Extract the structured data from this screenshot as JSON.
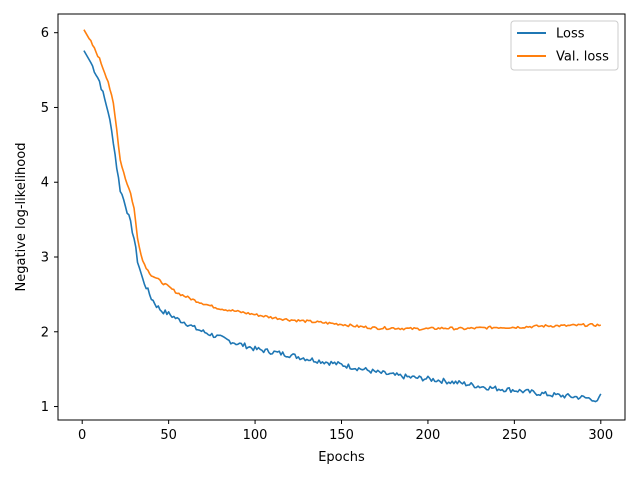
{
  "chart_data": {
    "type": "line",
    "title": "",
    "xlabel": "Epochs",
    "ylabel": "Negative log-likelihood",
    "xlim": [
      -14,
      314
    ],
    "ylim": [
      0.82,
      6.25
    ],
    "x_ticks": [
      0,
      50,
      100,
      150,
      200,
      250,
      300
    ],
    "y_ticks": [
      1,
      2,
      3,
      4,
      5,
      6
    ],
    "x_tick_labels": [
      "0",
      "50",
      "100",
      "150",
      "200",
      "250",
      "300"
    ],
    "y_tick_labels": [
      "1",
      "2",
      "3",
      "4",
      "5",
      "6"
    ],
    "grid": false,
    "legend_position": "top-right",
    "series": [
      {
        "name": "Loss",
        "color": "#1f77b4",
        "points": [
          [
            1,
            5.76
          ],
          [
            5,
            5.6
          ],
          [
            10,
            5.35
          ],
          [
            15,
            4.95
          ],
          [
            18,
            4.55
          ],
          [
            20,
            4.2
          ],
          [
            22,
            3.9
          ],
          [
            25,
            3.7
          ],
          [
            28,
            3.45
          ],
          [
            30,
            3.25
          ],
          [
            32,
            2.95
          ],
          [
            35,
            2.7
          ],
          [
            38,
            2.55
          ],
          [
            40,
            2.45
          ],
          [
            43,
            2.35
          ],
          [
            46,
            2.28
          ],
          [
            50,
            2.24
          ],
          [
            55,
            2.17
          ],
          [
            60,
            2.12
          ],
          [
            65,
            2.05
          ],
          [
            70,
            2.0
          ],
          [
            75,
            1.96
          ],
          [
            80,
            1.92
          ],
          [
            85,
            1.88
          ],
          [
            90,
            1.84
          ],
          [
            95,
            1.81
          ],
          [
            100,
            1.77
          ],
          [
            110,
            1.73
          ],
          [
            120,
            1.69
          ],
          [
            130,
            1.64
          ],
          [
            140,
            1.6
          ],
          [
            150,
            1.56
          ],
          [
            160,
            1.51
          ],
          [
            170,
            1.46
          ],
          [
            180,
            1.42
          ],
          [
            190,
            1.39
          ],
          [
            200,
            1.37
          ],
          [
            210,
            1.34
          ],
          [
            220,
            1.31
          ],
          [
            230,
            1.27
          ],
          [
            240,
            1.24
          ],
          [
            250,
            1.22
          ],
          [
            260,
            1.19
          ],
          [
            270,
            1.16
          ],
          [
            280,
            1.14
          ],
          [
            290,
            1.12
          ],
          [
            296,
            1.1
          ],
          [
            298,
            1.05
          ],
          [
            300,
            1.17
          ]
        ]
      },
      {
        "name": "Val. loss",
        "color": "#ff7f0e",
        "points": [
          [
            1,
            6.04
          ],
          [
            5,
            5.88
          ],
          [
            10,
            5.65
          ],
          [
            15,
            5.35
          ],
          [
            18,
            5.05
          ],
          [
            20,
            4.7
          ],
          [
            22,
            4.3
          ],
          [
            25,
            4.05
          ],
          [
            28,
            3.85
          ],
          [
            30,
            3.65
          ],
          [
            32,
            3.25
          ],
          [
            35,
            2.95
          ],
          [
            38,
            2.82
          ],
          [
            40,
            2.76
          ],
          [
            45,
            2.68
          ],
          [
            50,
            2.6
          ],
          [
            55,
            2.52
          ],
          [
            60,
            2.47
          ],
          [
            65,
            2.42
          ],
          [
            70,
            2.38
          ],
          [
            75,
            2.34
          ],
          [
            80,
            2.31
          ],
          [
            85,
            2.29
          ],
          [
            90,
            2.27
          ],
          [
            95,
            2.25
          ],
          [
            100,
            2.23
          ],
          [
            110,
            2.19
          ],
          [
            120,
            2.16
          ],
          [
            130,
            2.14
          ],
          [
            140,
            2.12
          ],
          [
            150,
            2.1
          ],
          [
            160,
            2.07
          ],
          [
            170,
            2.05
          ],
          [
            180,
            2.05
          ],
          [
            190,
            2.04
          ],
          [
            200,
            2.04
          ],
          [
            210,
            2.05
          ],
          [
            220,
            2.04
          ],
          [
            230,
            2.05
          ],
          [
            240,
            2.06
          ],
          [
            250,
            2.06
          ],
          [
            260,
            2.07
          ],
          [
            270,
            2.08
          ],
          [
            280,
            2.08
          ],
          [
            290,
            2.09
          ],
          [
            300,
            2.09
          ]
        ]
      }
    ]
  }
}
